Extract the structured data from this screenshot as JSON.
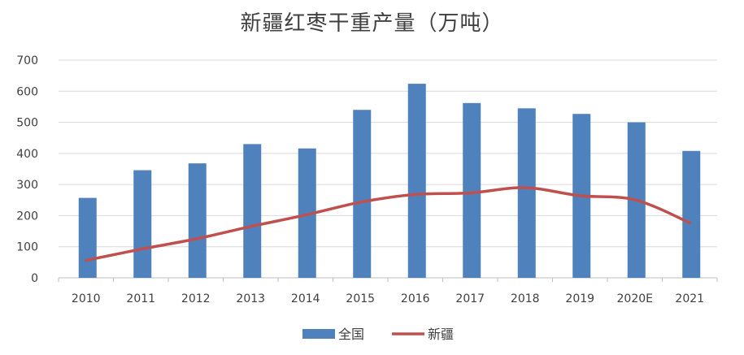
{
  "chart_data": {
    "type": "bar",
    "title": "新疆红枣干重产量（万吨）",
    "categories": [
      "2010",
      "2011",
      "2012",
      "2013",
      "2014",
      "2015",
      "2016",
      "2017",
      "2018",
      "2019",
      "2020E",
      "2021"
    ],
    "series": [
      {
        "name": "全国",
        "type": "bar",
        "color": "#4f81bd",
        "values": [
          257,
          346,
          368,
          430,
          416,
          540,
          624,
          562,
          545,
          527,
          500,
          408
        ]
      },
      {
        "name": "新疆",
        "type": "line",
        "color": "#c0504d",
        "values": [
          56,
          92,
          125,
          165,
          202,
          243,
          268,
          273,
          290,
          264,
          251,
          177
        ]
      }
    ],
    "ylim": [
      0,
      700
    ],
    "yticks": [
      0,
      100,
      200,
      300,
      400,
      500,
      600,
      700
    ],
    "grid": true,
    "legend_position": "bottom"
  }
}
